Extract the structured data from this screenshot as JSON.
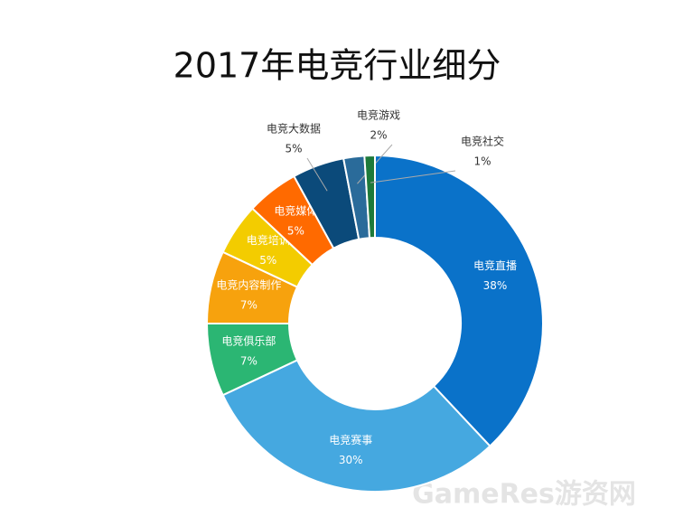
{
  "chart_data": {
    "type": "donut",
    "title": "2017年电竞行业细分",
    "categories": [
      "电竞直播",
      "电竞赛事",
      "电竞俱乐部",
      "电竞内容制作",
      "电竞培训",
      "电竞媒体",
      "电竞大数据",
      "电竞游戏",
      "电竞社交"
    ],
    "values": [
      38,
      30,
      7,
      7,
      5,
      5,
      5,
      2,
      1
    ],
    "value_labels": [
      "38%",
      "30%",
      "7%",
      "7%",
      "5%",
      "5%",
      "5%",
      "2%",
      "1%"
    ],
    "colors": [
      "#0a72c9",
      "#45a8e0",
      "#2bb673",
      "#f7a20d",
      "#f3cc00",
      "#ff6a00",
      "#0b4a7a",
      "#2a6b9a",
      "#1e7a3a"
    ],
    "watermark": "GameRes游资网"
  }
}
